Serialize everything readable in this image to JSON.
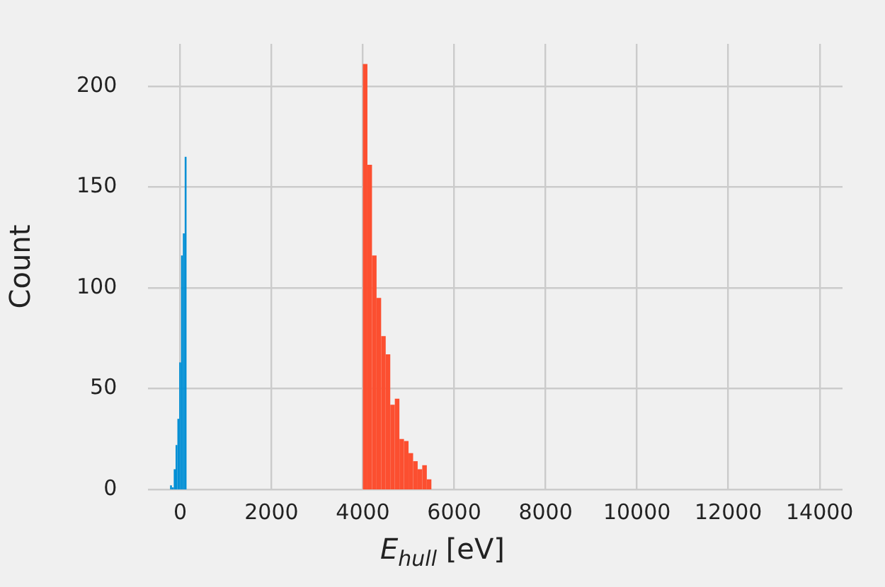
{
  "chart_data": {
    "type": "histogram",
    "xlabel": "E$_{hull}$ [eV]",
    "ylabel": "Count",
    "bins": [
      -220,
      -180,
      -140,
      -100,
      -60,
      -20,
      20,
      60,
      100,
      140,
      4000,
      4100,
      4200,
      4300,
      4400,
      4500,
      4600,
      4700,
      4800,
      4900,
      5000,
      5100,
      5200,
      5300,
      5400,
      5500
    ],
    "values": [
      2,
      1,
      10,
      22,
      35,
      63,
      116,
      127,
      165,
      null,
      211,
      161,
      116,
      95,
      76,
      67,
      42,
      45,
      25,
      24,
      18,
      14,
      10,
      12,
      5
    ],
    "colors": [
      "#008fd5",
      "#008fd5",
      "#008fd5",
      "#008fd5",
      "#008fd5",
      "#008fd5",
      "#008fd5",
      "#008fd5",
      "#008fd5",
      null,
      "#fc4f30",
      "#fc4f30",
      "#fc4f30",
      "#fc4f30",
      "#fc4f30",
      "#fc4f30",
      "#fc4f30",
      "#fc4f30",
      "#fc4f30",
      "#fc4f30",
      "#fc4f30",
      "#fc4f30",
      "#fc4f30",
      "#fc4f30",
      "#fc4f30"
    ],
    "xlim": [
      -700,
      14500
    ],
    "ylim": [
      0,
      221
    ],
    "xticks": [
      0,
      2000,
      4000,
      6000,
      8000,
      10000,
      12000,
      14000
    ],
    "yticks": [
      0,
      50,
      100,
      150,
      200
    ],
    "grid": true
  }
}
